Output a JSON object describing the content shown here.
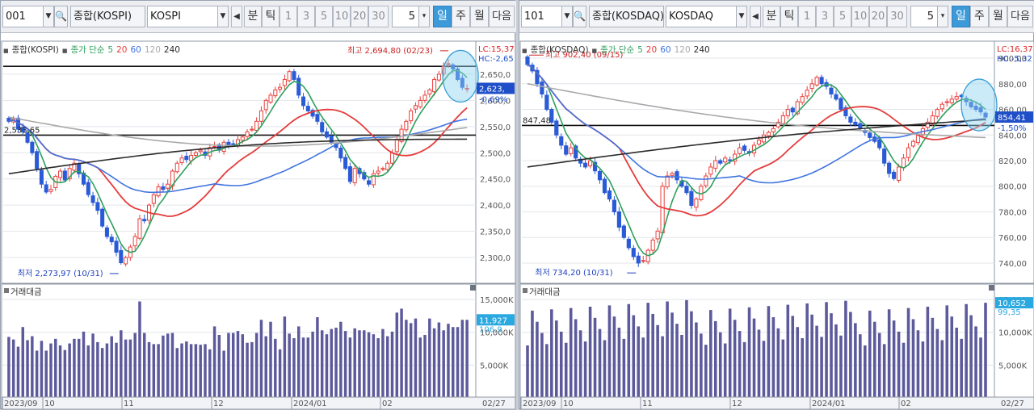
{
  "panels": [
    {
      "toolbar": {
        "code": "001",
        "name_display": "종합(KOSPI)",
        "index_name": "KOSPI",
        "btn_prev": "◀",
        "btn_min": "분",
        "btn_tick": "틱",
        "intervals": [
          "1",
          "3",
          "5",
          "10",
          "20",
          "30"
        ],
        "count": "5",
        "btn_day": "일",
        "btn_week": "주",
        "btn_month": "월",
        "btn_next": "다음"
      },
      "header": {
        "name": "종합(KOSPI)",
        "ma_label": "종가 단순",
        "ma_periods": [
          "5",
          "20",
          "60",
          "120",
          "240"
        ],
        "lc": "LC:15,37",
        "hc": "HC:-2,65"
      },
      "annotations": {
        "high": "최고 2,694,80 (02/23)",
        "low": "최저 2,273,97 (10/31)",
        "ref_level": "2,533,65"
      },
      "price_axis": {
        "ticks": [
          "2,650,0",
          "2,600,0",
          "2,550,0",
          "2,500,0",
          "2,450,0",
          "2,400,0",
          "2,350,0",
          "2,300,0"
        ],
        "current": "2,623,",
        "change": "-0,69%"
      },
      "volume": {
        "title": "거래대금",
        "ticks": [
          "15,000K",
          "10,000K",
          "5,000K"
        ],
        "current": "11,927",
        "ma": "106,9"
      },
      "x_axis": {
        "labels": [
          "2023/09",
          "10",
          "11",
          "12",
          "2024/01",
          "02"
        ],
        "end": "02/27"
      },
      "chart_data": {
        "type": "candlestick",
        "ylim": [
          2260,
          2710
        ],
        "levels": {
          "high_line": 2665,
          "ref_line": 2533.65
        },
        "high": 2694.8,
        "low": 2273.97,
        "closes": [
          2560,
          2565,
          2545,
          2540,
          2520,
          2500,
          2470,
          2440,
          2425,
          2430,
          2455,
          2465,
          2448,
          2470,
          2480,
          2460,
          2440,
          2420,
          2405,
          2390,
          2360,
          2340,
          2330,
          2310,
          2290,
          2300,
          2320,
          2340,
          2374,
          2370,
          2400,
          2420,
          2435,
          2430,
          2440,
          2465,
          2480,
          2490,
          2487,
          2495,
          2500,
          2505,
          2495,
          2510,
          2512,
          2505,
          2520,
          2515,
          2517,
          2525,
          2530,
          2540,
          2545,
          2560,
          2580,
          2600,
          2610,
          2620,
          2625,
          2640,
          2655,
          2640,
          2610,
          2590,
          2580,
          2570,
          2560,
          2540,
          2530,
          2520,
          2510,
          2490,
          2470,
          2445,
          2470,
          2460,
          2450,
          2440,
          2460,
          2465,
          2470,
          2480,
          2500,
          2525,
          2545,
          2560,
          2580,
          2590,
          2600,
          2610,
          2620,
          2640,
          2650,
          2665,
          2670,
          2660,
          2640,
          2625,
          2623
        ],
        "ma_levels": {
          "ma120_start": 2568,
          "ma240_start": 2460,
          "ma240_end": 2526
        },
        "volume_series": [
          9.3,
          8.9,
          7.8,
          10.8,
          8.8,
          9.4,
          7.2,
          8.7,
          7.2,
          8.3,
          9.0,
          8.0,
          7.3,
          8.3,
          9.0,
          9.0,
          10.1,
          8.0,
          9.8,
          8.5,
          7.6,
          8.3,
          9.4,
          8.4,
          10.3,
          8.9,
          8.9,
          9.9,
          14.7,
          9.9,
          8.5,
          8.2,
          8.2,
          9.5,
          9.8,
          9.9,
          7.6,
          8.3,
          8.6,
          8.2,
          8.2,
          8.1,
          8.2,
          7.4,
          10.9,
          9.6,
          7.2,
          9.9,
          9.9,
          10.2,
          9.7,
          8.4,
          8.5,
          9.9,
          11.9,
          9.4,
          11.6,
          9.0,
          7.4,
          12.4,
          9.8,
          9.1,
          10.9,
          9.2,
          9.2,
          10.1,
          12.3,
          10.3,
          9.7,
          10.5,
          10.7,
          11.6,
          10.2,
          9.2,
          10.6,
          10.3,
          10.3,
          10.0,
          9.7,
          9.1,
          10.5,
          9.4,
          10.1,
          13.0,
          13.6,
          11.9,
          11.4,
          12.1,
          9.2,
          9.6,
          12.1,
          10.6,
          11.5,
          10.3,
          11.3,
          10.8,
          10.8,
          11.9,
          11.9
        ]
      }
    },
    {
      "toolbar": {
        "code": "101",
        "name_display": "종합(KOSDAQ)",
        "index_name": "KOSDAQ",
        "btn_prev": "◀",
        "btn_min": "분",
        "btn_tick": "틱",
        "intervals": [
          "1",
          "3",
          "5",
          "10",
          "20",
          "30"
        ],
        "count": "5",
        "btn_day": "일",
        "btn_week": "주",
        "btn_month": "월",
        "btn_next": "다음"
      },
      "header": {
        "name": "종합(KOSDAQ)",
        "ma_label": "종가 단순",
        "ma_periods": [
          "5",
          "20",
          "60",
          "120",
          "240"
        ],
        "lc": "LC:16,37",
        "hc": "HC:-5,32"
      },
      "annotations": {
        "high": "최고 902,40 (09/15)",
        "low": "최저 734,20 (10/31)",
        "ref_level": "847,48"
      },
      "price_axis": {
        "ticks": [
          "900,00",
          "880,00",
          "860,00",
          "840,00",
          "820,00",
          "800,00",
          "780,00",
          "760,00",
          "740,00"
        ],
        "current": "854,41",
        "change": "-1,50%"
      },
      "volume": {
        "title": "거래대금",
        "ticks": [
          "15,000K",
          "10,000K",
          "5,000K"
        ],
        "current": "10,652",
        "ma": "99,35"
      },
      "x_axis": {
        "labels": [
          "2023/09",
          "10",
          "11",
          "12",
          "2024/01",
          "02"
        ],
        "end": "02/27"
      },
      "chart_data": {
        "type": "candlestick",
        "ylim": [
          728,
          912
        ],
        "levels": {
          "high_line": null,
          "ref_line": 847.48
        },
        "high": 902.4,
        "low": 734.2,
        "closes": [
          895,
          890,
          880,
          872,
          860,
          850,
          840,
          832,
          825,
          830,
          822,
          818,
          815,
          820,
          812,
          805,
          795,
          790,
          780,
          768,
          760,
          752,
          745,
          740,
          742,
          750,
          758,
          765,
          800,
          808,
          810,
          805,
          800,
          795,
          785,
          790,
          800,
          808,
          815,
          820,
          818,
          822,
          820,
          825,
          830,
          828,
          826,
          832,
          836,
          840,
          842,
          845,
          850,
          855,
          860,
          858,
          866,
          870,
          875,
          880,
          885,
          880,
          878,
          872,
          868,
          860,
          855,
          850,
          848,
          845,
          842,
          838,
          835,
          830,
          818,
          810,
          806,
          815,
          822,
          830,
          835,
          840,
          845,
          850,
          855,
          860,
          864,
          866,
          868,
          870,
          870,
          866,
          862,
          860,
          858,
          854
        ]
      }
    }
  ],
  "colors": {
    "up": "#e8413c",
    "down": "#2a5bd7",
    "ma5": "#2e9f5b",
    "ma20": "#e63b3b",
    "ma60": "#3f74e0",
    "ma120": "#a9a9a9",
    "ma240": "#2b2b2b",
    "volume": "#5d5a9c",
    "active": "#3d9ad9"
  }
}
